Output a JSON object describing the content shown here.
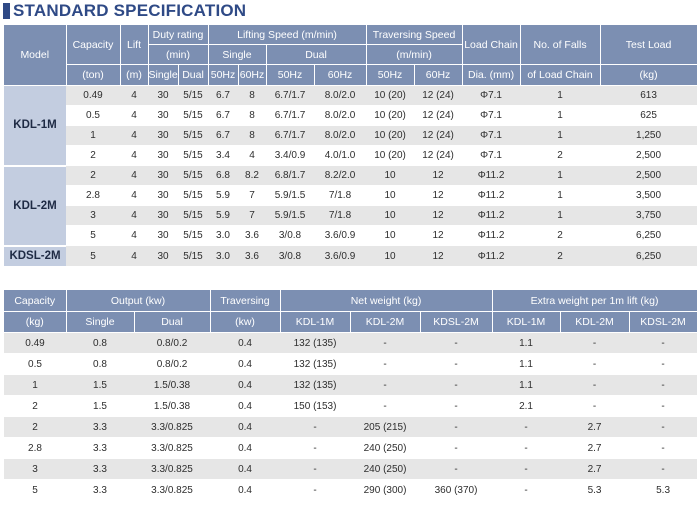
{
  "title": "STANDARD SPECIFICATION",
  "spec_table": {
    "headers": {
      "model": "Model",
      "capacity": "Capacity",
      "capacity_unit": "(ton)",
      "lift": "Lift",
      "lift_unit": "(m)",
      "duty": "Duty rating",
      "duty_unit": "(min)",
      "duty_single": "Single",
      "duty_dual": "Dual",
      "lifting_speed": "Lifting Speed (m/min)",
      "ls_single": "Single",
      "ls_dual": "Dual",
      "traversing_speed": "Traversing Speed",
      "ts_unit": "(m/min)",
      "hz50": "50Hz",
      "hz60": "60Hz",
      "load_chain_1": "Load Chain",
      "load_chain_2": "Dia. (mm)",
      "falls_1": "No. of Falls",
      "falls_2": "of Load Chain",
      "test_load_1": "Test Load",
      "test_load_2": "(kg)"
    },
    "groups": [
      {
        "model": "KDL-1M",
        "rows": [
          [
            "0.49",
            "4",
            "30",
            "5/15",
            "6.7",
            "8",
            "6.7/1.7",
            "8.0/2.0",
            "10 (20)",
            "12 (24)",
            "Φ7.1",
            "1",
            "613"
          ],
          [
            "0.5",
            "4",
            "30",
            "5/15",
            "6.7",
            "8",
            "6.7/1.7",
            "8.0/2.0",
            "10 (20)",
            "12 (24)",
            "Φ7.1",
            "1",
            "625"
          ],
          [
            "1",
            "4",
            "30",
            "5/15",
            "6.7",
            "8",
            "6.7/1.7",
            "8.0/2.0",
            "10 (20)",
            "12 (24)",
            "Φ7.1",
            "1",
            "1,250"
          ],
          [
            "2",
            "4",
            "30",
            "5/15",
            "3.4",
            "4",
            "3.4/0.9",
            "4.0/1.0",
            "10 (20)",
            "12 (24)",
            "Φ7.1",
            "2",
            "2,500"
          ]
        ]
      },
      {
        "model": "KDL-2M",
        "rows": [
          [
            "2",
            "4",
            "30",
            "5/15",
            "6.8",
            "8.2",
            "6.8/1.7",
            "8.2/2.0",
            "10",
            "12",
            "Φ11.2",
            "1",
            "2,500"
          ],
          [
            "2.8",
            "4",
            "30",
            "5/15",
            "5.9",
            "7",
            "5.9/1.5",
            "7/1.8",
            "10",
            "12",
            "Φ11.2",
            "1",
            "3,500"
          ],
          [
            "3",
            "4",
            "30",
            "5/15",
            "5.9",
            "7",
            "5.9/1.5",
            "7/1.8",
            "10",
            "12",
            "Φ11.2",
            "1",
            "3,750"
          ],
          [
            "5",
            "4",
            "30",
            "5/15",
            "3.0",
            "3.6",
            "3/0.8",
            "3.6/0.9",
            "10",
            "12",
            "Φ11.2",
            "2",
            "6,250"
          ]
        ]
      },
      {
        "model": "KDSL-2M",
        "rows": [
          [
            "5",
            "4",
            "30",
            "5/15",
            "3.0",
            "3.6",
            "3/0.8",
            "3.6/0.9",
            "10",
            "12",
            "Φ11.2",
            "2",
            "6,250"
          ]
        ]
      }
    ]
  },
  "weight_table": {
    "headers": {
      "capacity": "Capacity",
      "capacity_unit": "(kg)",
      "output": "Output (kw)",
      "out_single": "Single",
      "out_dual": "Dual",
      "traversing": "Traversing",
      "trav_unit": "(kw)",
      "net_weight": "Net weight (kg)",
      "extra_weight": "Extra weight per 1m lift (kg)",
      "kdl1m": "KDL-1M",
      "kdl2m": "KDL-2M",
      "kdsl2m": "KDSL-2M"
    },
    "rows": [
      [
        "0.49",
        "0.8",
        "0.8/0.2",
        "0.4",
        "132 (135)",
        "-",
        "-",
        "1.1",
        "-",
        "-"
      ],
      [
        "0.5",
        "0.8",
        "0.8/0.2",
        "0.4",
        "132 (135)",
        "-",
        "-",
        "1.1",
        "-",
        "-"
      ],
      [
        "1",
        "1.5",
        "1.5/0.38",
        "0.4",
        "132 (135)",
        "-",
        "-",
        "1.1",
        "-",
        "-"
      ],
      [
        "2",
        "1.5",
        "1.5/0.38",
        "0.4",
        "150 (153)",
        "-",
        "-",
        "2.1",
        "-",
        "-"
      ],
      [
        "2",
        "3.3",
        "3.3/0.825",
        "0.4",
        "-",
        "205 (215)",
        "-",
        "-",
        "2.7",
        "-"
      ],
      [
        "2.8",
        "3.3",
        "3.3/0.825",
        "0.4",
        "-",
        "240 (250)",
        "-",
        "-",
        "2.7",
        "-"
      ],
      [
        "3",
        "3.3",
        "3.3/0.825",
        "0.4",
        "-",
        "240 (250)",
        "-",
        "-",
        "2.7",
        "-"
      ],
      [
        "5",
        "3.3",
        "3.3/0.825",
        "0.4",
        "-",
        "290 (300)",
        "360 (370)",
        "-",
        "5.3",
        "5.3"
      ]
    ]
  },
  "colors": {
    "title": "#2f4a86",
    "header": "#7c8fb2",
    "model_cell": "#c3cde0",
    "row_alt": "#e6e6e6"
  }
}
